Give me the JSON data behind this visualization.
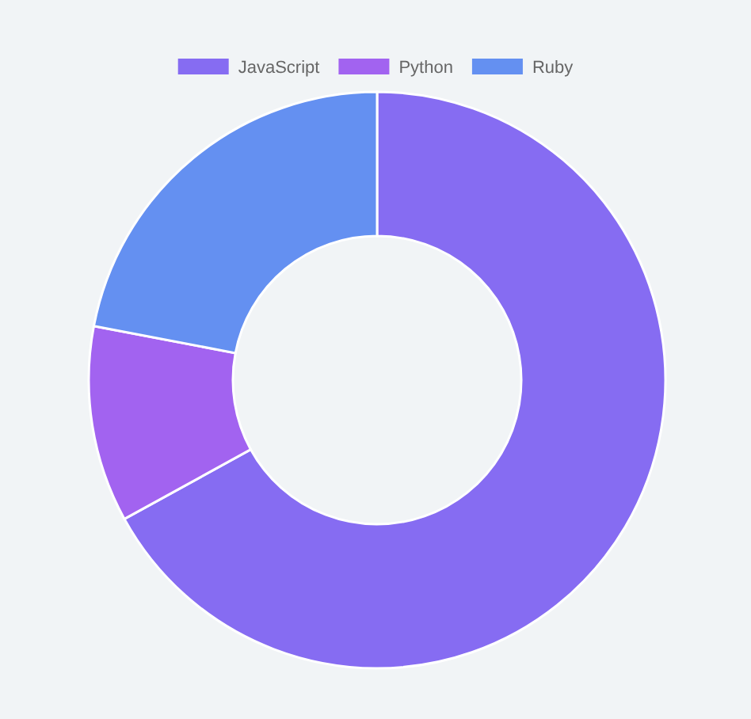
{
  "chart_data": {
    "type": "donut",
    "categories": [
      "JavaScript",
      "Python",
      "Ruby"
    ],
    "values": [
      67,
      11,
      22
    ],
    "colors": [
      "#866cf2",
      "#a263f0",
      "#6490f1"
    ],
    "legend": "top"
  }
}
